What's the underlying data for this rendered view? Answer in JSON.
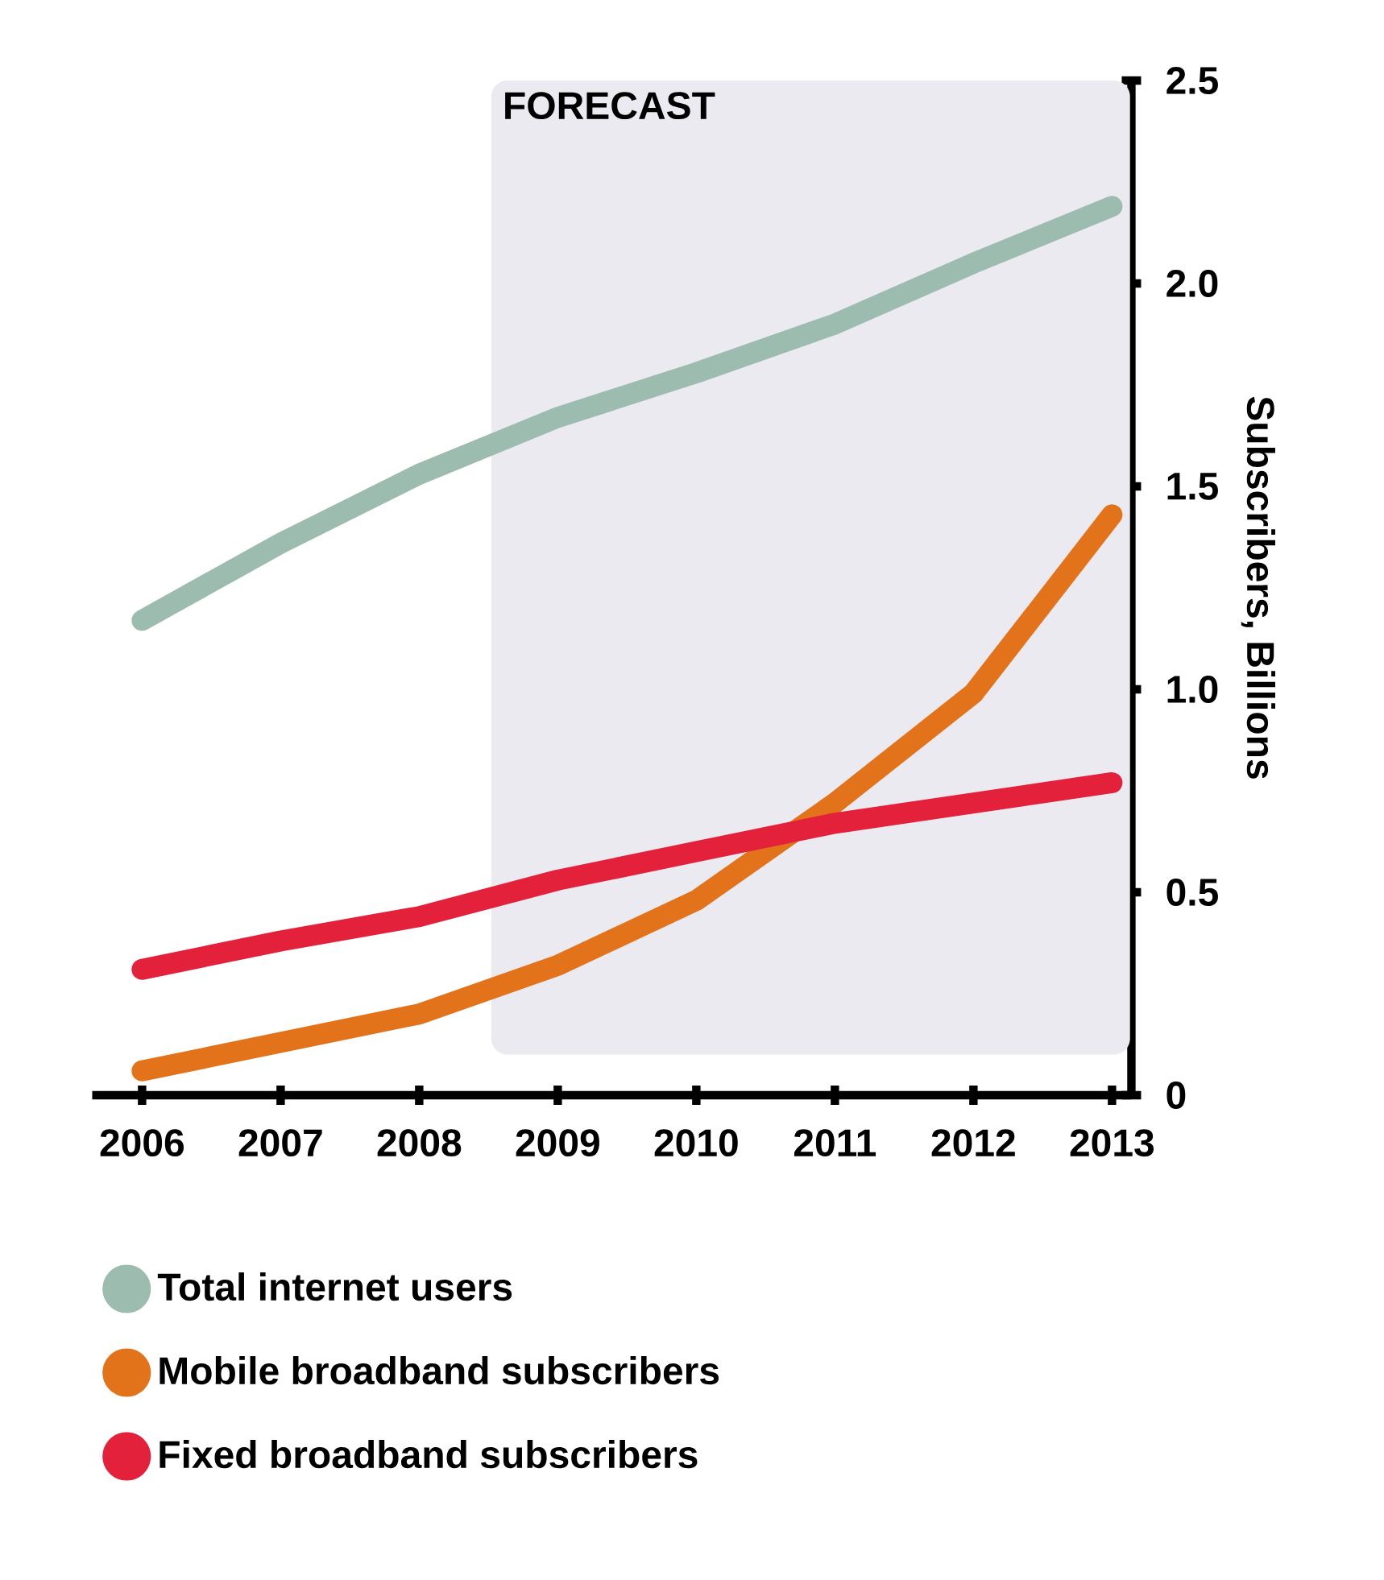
{
  "chart_data": {
    "type": "line",
    "ylabel": "Subscribers, Billions",
    "x": [
      2006,
      2007,
      2008,
      2009,
      2010,
      2011,
      2012,
      2013
    ],
    "series": [
      {
        "name": "Total internet users",
        "color": "#9dbcb0",
        "values": [
          1.17,
          1.36,
          1.53,
          1.67,
          1.78,
          1.9,
          2.05,
          2.19
        ]
      },
      {
        "name": "Mobile broadband subscribers",
        "color": "#e3731b",
        "values": [
          0.06,
          0.13,
          0.2,
          0.32,
          0.48,
          0.72,
          0.99,
          1.43
        ]
      },
      {
        "name": "Fixed broadband subscribers",
        "color": "#e3213b",
        "values": [
          0.31,
          0.38,
          0.44,
          0.53,
          0.6,
          0.67,
          0.72,
          0.77
        ]
      }
    ],
    "xlim": [
      2005.64,
      2013.14
    ],
    "ylim": [
      0,
      2.5
    ],
    "xticks": [
      2006,
      2007,
      2008,
      2009,
      2010,
      2011,
      2012,
      2013
    ],
    "yticks": [
      {
        "value": 0,
        "label": "0"
      },
      {
        "value": 0.5,
        "label": "0.5"
      },
      {
        "value": 1,
        "label": "1.0"
      },
      {
        "value": 1.5,
        "label": "1.5"
      },
      {
        "value": 2,
        "label": "2.0"
      },
      {
        "value": 2.5,
        "label": "2.5"
      }
    ],
    "bands": [
      {
        "axis": "x",
        "from": 2008.52,
        "to": 2013.13,
        "label": "FORECAST",
        "color": "#ebeaf1"
      }
    ],
    "legend": "bottom",
    "grid": false,
    "marker": "none",
    "line_style": "solid"
  }
}
